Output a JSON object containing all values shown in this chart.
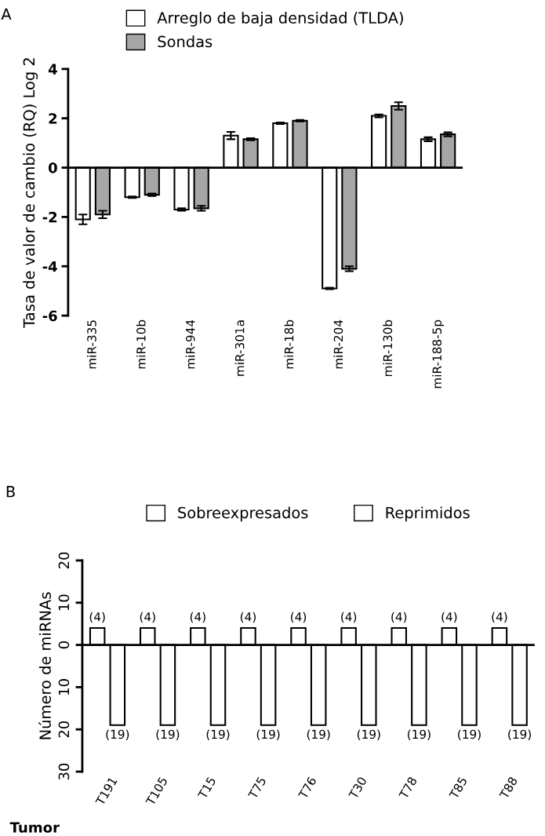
{
  "chart_data": [
    {
      "type": "bar",
      "ylabel": "Tasa de valor de cambio (RQ) Log 2",
      "annotations": [
        "A"
      ],
      "categories": [
        "miR-335",
        "miR-10b",
        "miR-944",
        "miR-301a",
        "miR-18b",
        "miR-204",
        "miR-130b",
        "miR-188-5p"
      ],
      "series": [
        {
          "name": "Arreglo de baja densidad (TLDA)",
          "color": "#ffffff",
          "values": [
            -2.1,
            -1.2,
            -1.7,
            1.3,
            1.8,
            -4.9,
            2.1,
            1.15
          ],
          "errors": [
            0.2,
            0.03,
            0.05,
            0.15,
            0.03,
            0.03,
            0.06,
            0.08
          ]
        },
        {
          "name": "Sondas",
          "color": "#a6a6a6",
          "values": [
            -1.9,
            -1.1,
            -1.65,
            1.15,
            1.9,
            -4.1,
            2.5,
            1.35
          ],
          "errors": [
            0.15,
            0.05,
            0.1,
            0.04,
            0.03,
            0.1,
            0.15,
            0.08
          ]
        }
      ],
      "ref_lines": [
        {
          "axis": "y",
          "value": 0,
          "color": "#000000"
        }
      ],
      "ylim": [
        -6,
        4
      ],
      "yticks": [
        -6,
        -4,
        -2,
        0,
        2,
        4
      ],
      "legend": "top",
      "grid": false
    },
    {
      "type": "bar",
      "ylabel": "Número de miRNAs",
      "xlabel": "Tumor",
      "annotations": [
        "B"
      ],
      "categories": [
        "T191",
        "T105",
        "T15",
        "T75",
        "T76",
        "T30",
        "T78",
        "T85",
        "T88"
      ],
      "series": [
        {
          "name": "Sobreexpresados",
          "color": "#ffffff",
          "values": [
            4,
            4,
            4,
            4,
            4,
            4,
            4,
            4,
            4
          ],
          "value_labels": [
            "(4)",
            "(4)",
            "(4)",
            "(4)",
            "(4)",
            "(4)",
            "(4)",
            "(4)",
            "(4)"
          ]
        },
        {
          "name": "Reprimidos",
          "color": "#ffffff",
          "values": [
            -19,
            -19,
            -19,
            -19,
            -19,
            -19,
            -19,
            -19,
            -19
          ],
          "value_labels": [
            "(19)",
            "(19)",
            "(19)",
            "(19)",
            "(19)",
            "(19)",
            "(19)",
            "(19)",
            "(19)"
          ]
        }
      ],
      "ref_lines": [
        {
          "axis": "y",
          "value": 0,
          "color": "#000000"
        }
      ],
      "ylim": [
        -30,
        20
      ],
      "yticks": [
        {
          "value": -30,
          "label": "30"
        },
        {
          "value": -20,
          "label": "20"
        },
        {
          "value": -10,
          "label": "10"
        },
        0,
        10,
        20
      ],
      "legend": "top",
      "grid": false
    }
  ]
}
